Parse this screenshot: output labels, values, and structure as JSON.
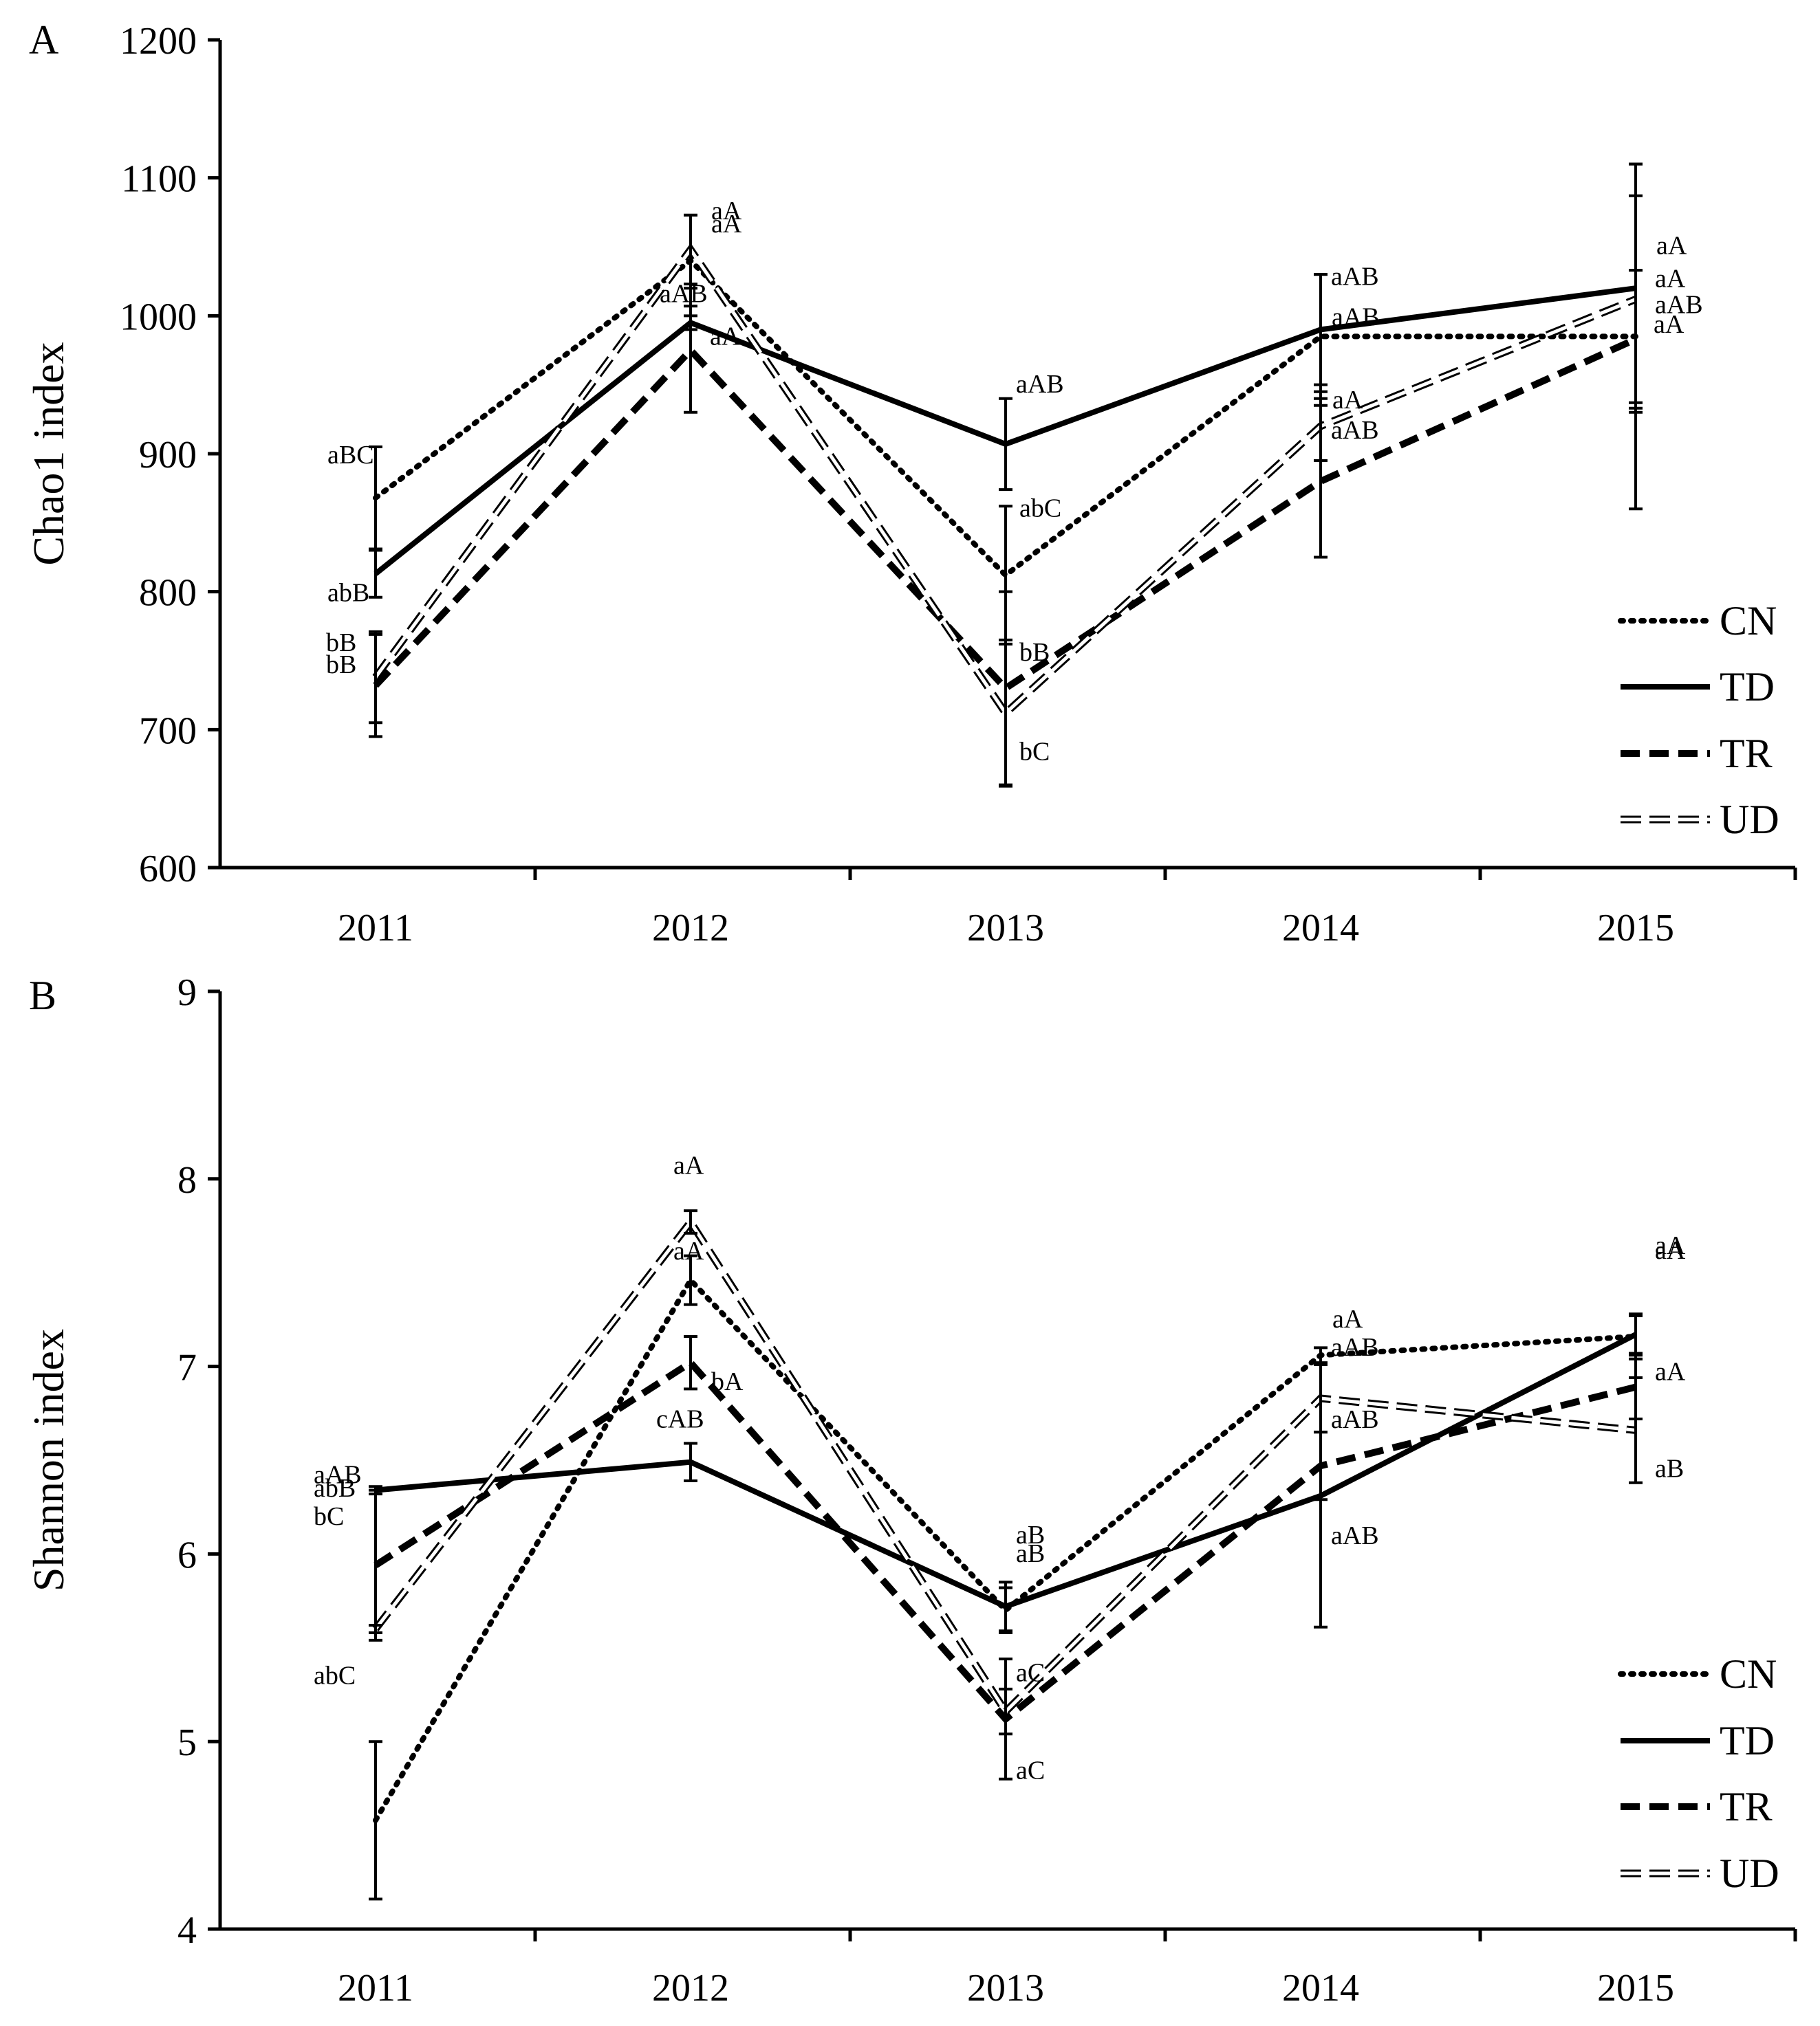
{
  "chart_data": [
    {
      "type": "line",
      "panel_label": "A",
      "ylabel": "Chao1 index",
      "xlabel": "",
      "ylim": [
        600,
        1200
      ],
      "yticks": [
        600,
        700,
        800,
        900,
        1000,
        1100,
        1200
      ],
      "categories": [
        "2011",
        "2012",
        "2013",
        "2014",
        "2015"
      ],
      "legend_position": "bottom-right",
      "series": [
        {
          "name": "CN",
          "values": [
            868,
            1040,
            812,
            985,
            985
          ],
          "errors": [
            37,
            33,
            50,
            45,
            125
          ],
          "labels": [
            "aBC",
            "aA",
            "abC",
            "aAB",
            "aA"
          ]
        },
        {
          "name": "TD",
          "values": [
            813,
            995,
            907,
            990,
            1020
          ],
          "errors": [
            17,
            5,
            33,
            40,
            90
          ],
          "labels": [
            "abB",
            "aAB",
            "aAB",
            "aAB",
            "aA"
          ]
        },
        {
          "name": "TR",
          "values": [
            732,
            975,
            730,
            880,
            983
          ],
          "errors": [
            37,
            45,
            70,
            55,
            50
          ],
          "labels": [
            "bB",
            "aA",
            "bB",
            "aAB",
            "aAB"
          ]
        },
        {
          "name": "UD",
          "values": [
            738,
            1048,
            712,
            920,
            1012
          ],
          "errors": [
            33,
            25,
            53,
            25,
            75
          ],
          "labels": [
            "bB",
            "aA",
            "bC",
            "aA",
            "aA"
          ]
        }
      ]
    },
    {
      "type": "line",
      "panel_label": "B",
      "ylabel": "Shannon index",
      "xlabel": "",
      "ylim": [
        4,
        9
      ],
      "yticks": [
        4,
        5,
        6,
        7,
        8,
        9
      ],
      "categories": [
        "2011",
        "2012",
        "2013",
        "2014",
        "2015"
      ],
      "legend_position": "bottom-right",
      "series": [
        {
          "name": "CN",
          "values": [
            4.58,
            7.46,
            5.7,
            7.06,
            7.16
          ],
          "errors": [
            0.42,
            0.13,
            0.12,
            0.04,
            0.12
          ],
          "labels": [
            "bC",
            "aA",
            "aB",
            "aA",
            "aA"
          ]
        },
        {
          "name": "TD",
          "values": [
            6.34,
            6.49,
            5.72,
            6.31,
            7.17
          ],
          "errors": [
            0.02,
            0.1,
            0.13,
            0.7,
            0.1
          ],
          "labels": [
            "aAB",
            "cAB",
            "aB",
            "aAB",
            "aA"
          ]
        },
        {
          "name": "TR",
          "values": [
            5.94,
            7.02,
            5.12,
            6.47,
            6.89
          ],
          "errors": [
            0.4,
            0.14,
            0.32,
            0.18,
            0.17
          ],
          "labels": [
            "abB",
            "bA",
            "aC",
            "aAB",
            "aA"
          ]
        },
        {
          "name": "UD",
          "values": [
            5.6,
            7.77,
            5.16,
            6.83,
            6.66
          ],
          "errors": [
            0.02,
            0.06,
            0.12,
            0.18,
            0.28
          ],
          "labels": [
            "abC",
            "aA",
            "aC",
            "aAB",
            "aB"
          ]
        }
      ]
    }
  ]
}
